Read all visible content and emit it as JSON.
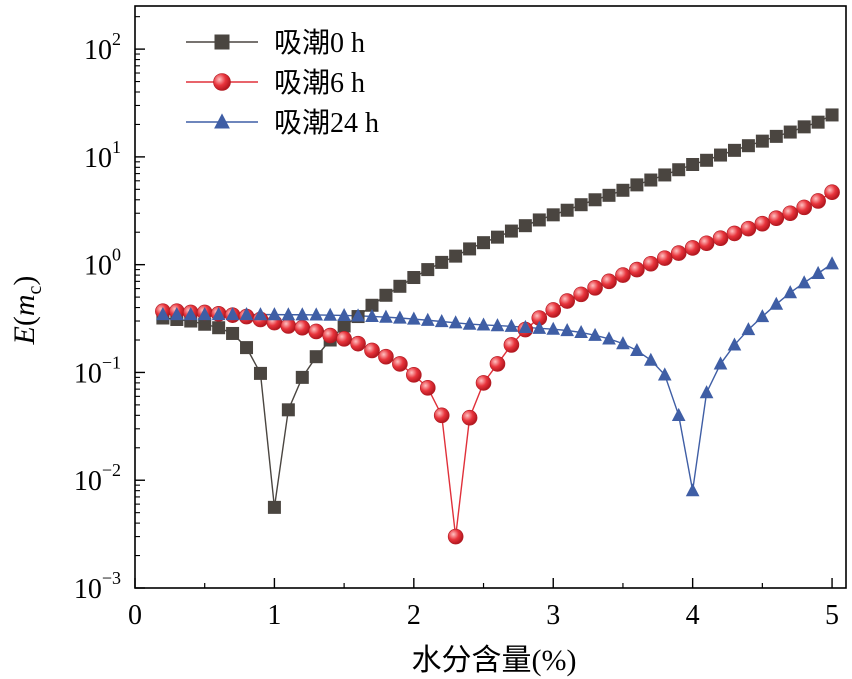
{
  "chart_data": {
    "type": "line",
    "title": "",
    "xlabel": "水分含量(%)",
    "ylabel": {
      "base": "E(",
      "italic": "m",
      "sub": "c",
      "close": ")"
    },
    "xscale": "linear",
    "yscale": "log",
    "xlim": [
      0,
      5.1
    ],
    "ylim_exp": [
      -3,
      2.4
    ],
    "x_ticks": [
      0,
      1,
      2,
      3,
      4,
      5
    ],
    "x_tick_labels": [
      "0",
      "1",
      "2",
      "3",
      "4",
      "5"
    ],
    "y_ticks_exp": [
      -3,
      -2,
      -1,
      0,
      1,
      2
    ],
    "y_tick_base": "10",
    "y_tick_exps": [
      "−3",
      "−2",
      "−1",
      "0",
      "1",
      "2"
    ],
    "legend_position": "top-left",
    "x": [
      0.2,
      0.3,
      0.4,
      0.5,
      0.6,
      0.7,
      0.8,
      0.9,
      1.0,
      1.1,
      1.2,
      1.3,
      1.4,
      1.5,
      1.6,
      1.7,
      1.8,
      1.9,
      2.0,
      2.1,
      2.2,
      2.3,
      2.4,
      2.5,
      2.6,
      2.7,
      2.8,
      2.9,
      3.0,
      3.1,
      3.2,
      3.3,
      3.4,
      3.5,
      3.6,
      3.7,
      3.8,
      3.9,
      4.0,
      4.1,
      4.2,
      4.3,
      4.4,
      4.5,
      4.6,
      4.7,
      4.8,
      4.9,
      5.0
    ],
    "series": [
      {
        "name": "吸潮0 h",
        "marker": "square",
        "color": "#4a4540",
        "values": [
          0.32,
          0.31,
          0.3,
          0.28,
          0.26,
          0.23,
          0.17,
          0.098,
          0.0056,
          0.045,
          0.09,
          0.14,
          0.2,
          0.27,
          0.33,
          0.42,
          0.52,
          0.63,
          0.76,
          0.9,
          1.05,
          1.2,
          1.4,
          1.6,
          1.8,
          2.05,
          2.3,
          2.6,
          2.9,
          3.2,
          3.6,
          4.0,
          4.4,
          4.9,
          5.5,
          6.1,
          6.8,
          7.6,
          8.5,
          9.3,
          10.4,
          11.5,
          12.7,
          14.0,
          15.5,
          17.0,
          19.0,
          21.0,
          24.5
        ]
      },
      {
        "name": "吸潮6 h",
        "marker": "circle",
        "color": "#e0303a",
        "values": [
          0.37,
          0.37,
          0.36,
          0.36,
          0.35,
          0.34,
          0.33,
          0.31,
          0.29,
          0.27,
          0.26,
          0.24,
          0.22,
          0.205,
          0.185,
          0.16,
          0.14,
          0.12,
          0.095,
          0.072,
          0.04,
          0.003,
          0.038,
          0.08,
          0.12,
          0.18,
          0.25,
          0.32,
          0.38,
          0.46,
          0.53,
          0.61,
          0.7,
          0.8,
          0.9,
          1.02,
          1.15,
          1.28,
          1.43,
          1.58,
          1.76,
          1.95,
          2.16,
          2.4,
          2.7,
          3.0,
          3.4,
          3.9,
          4.7
        ]
      },
      {
        "name": "吸潮24 h",
        "marker": "triangle",
        "color": "#3f5ea5",
        "values": [
          0.345,
          0.345,
          0.345,
          0.345,
          0.345,
          0.345,
          0.345,
          0.344,
          0.344,
          0.343,
          0.343,
          0.342,
          0.34,
          0.338,
          0.335,
          0.331,
          0.326,
          0.32,
          0.313,
          0.305,
          0.297,
          0.289,
          0.281,
          0.276,
          0.272,
          0.268,
          0.262,
          0.257,
          0.252,
          0.245,
          0.235,
          0.221,
          0.205,
          0.185,
          0.16,
          0.13,
          0.095,
          0.04,
          0.008,
          0.065,
          0.12,
          0.18,
          0.25,
          0.33,
          0.43,
          0.55,
          0.68,
          0.83,
          1.02
        ]
      }
    ]
  }
}
